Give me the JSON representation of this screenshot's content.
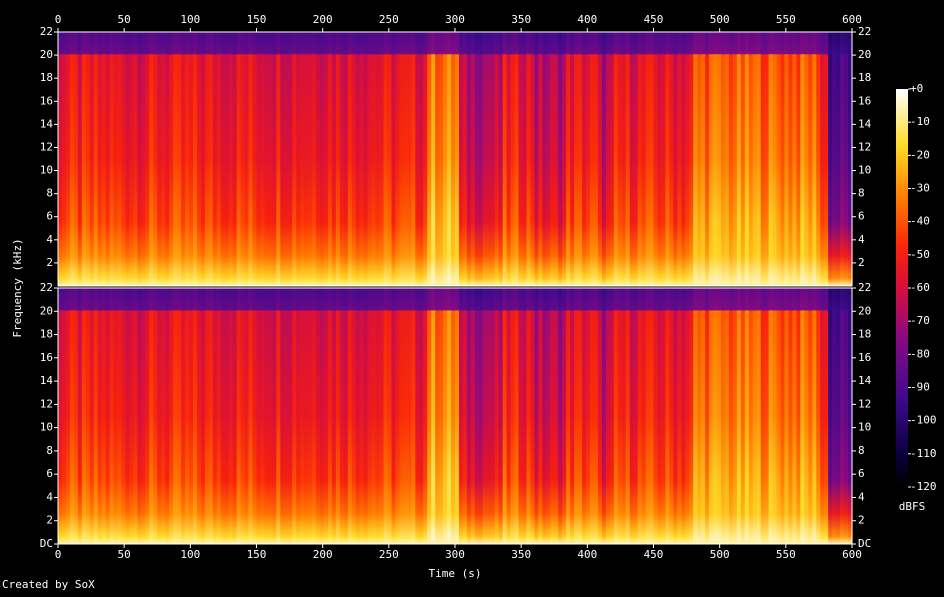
{
  "chart_data": {
    "type": "spectrogram",
    "xlabel": "Time (s)",
    "ylabel": "Frequency (kHz)",
    "xlim": [
      0,
      600
    ],
    "xticks": [
      0,
      50,
      100,
      150,
      200,
      250,
      300,
      350,
      400,
      450,
      500,
      550,
      600
    ],
    "ylim": [
      0,
      22
    ],
    "channels": [
      {
        "yticks": [
          2,
          4,
          6,
          8,
          10,
          12,
          14,
          16,
          18,
          20,
          22
        ]
      },
      {
        "yticks": [
          {
            "value": 0,
            "label": "DC"
          },
          2,
          4,
          6,
          8,
          10,
          12,
          14,
          16,
          18,
          20,
          22
        ]
      }
    ],
    "zlim": [
      -120,
      0
    ],
    "zticks": [
      {
        "value": 0,
        "label": "+0"
      },
      -10,
      -20,
      -30,
      -40,
      -50,
      -60,
      -70,
      -80,
      -90,
      -100,
      -110,
      -120
    ],
    "colorbar_label": "dBFS",
    "footer": "Created by SoX"
  }
}
